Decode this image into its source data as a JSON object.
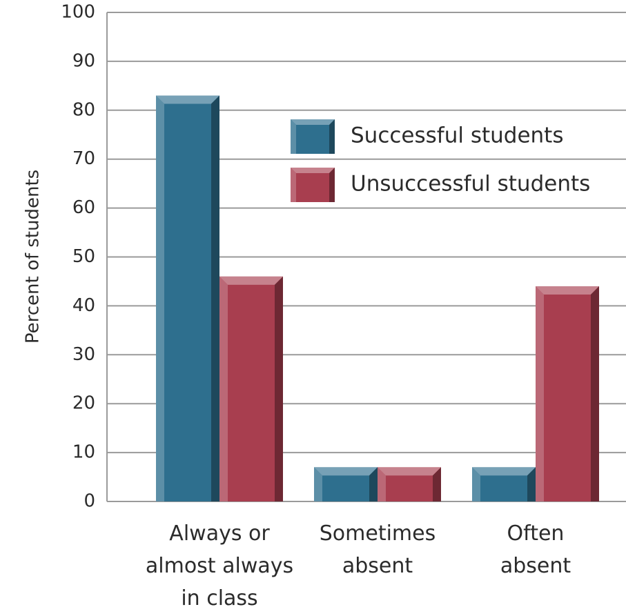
{
  "chart_data": {
    "type": "bar",
    "ylabel": "Percent of students",
    "xlabel": "",
    "ylim": [
      0,
      100
    ],
    "yticks": [
      0,
      10,
      20,
      30,
      40,
      50,
      60,
      70,
      80,
      90,
      100
    ],
    "grid": true,
    "legend_position": "top-right",
    "categories": [
      [
        "Always or",
        "almost always",
        "in class"
      ],
      [
        "Sometimes",
        "absent"
      ],
      [
        "Often",
        "absent"
      ]
    ],
    "series": [
      {
        "name": "Successful students",
        "values": [
          83,
          7,
          7
        ],
        "color": "#2e6f8e"
      },
      {
        "name": "Unsuccessful students",
        "values": [
          46,
          7,
          44
        ],
        "color": "#a83e4f"
      }
    ]
  }
}
